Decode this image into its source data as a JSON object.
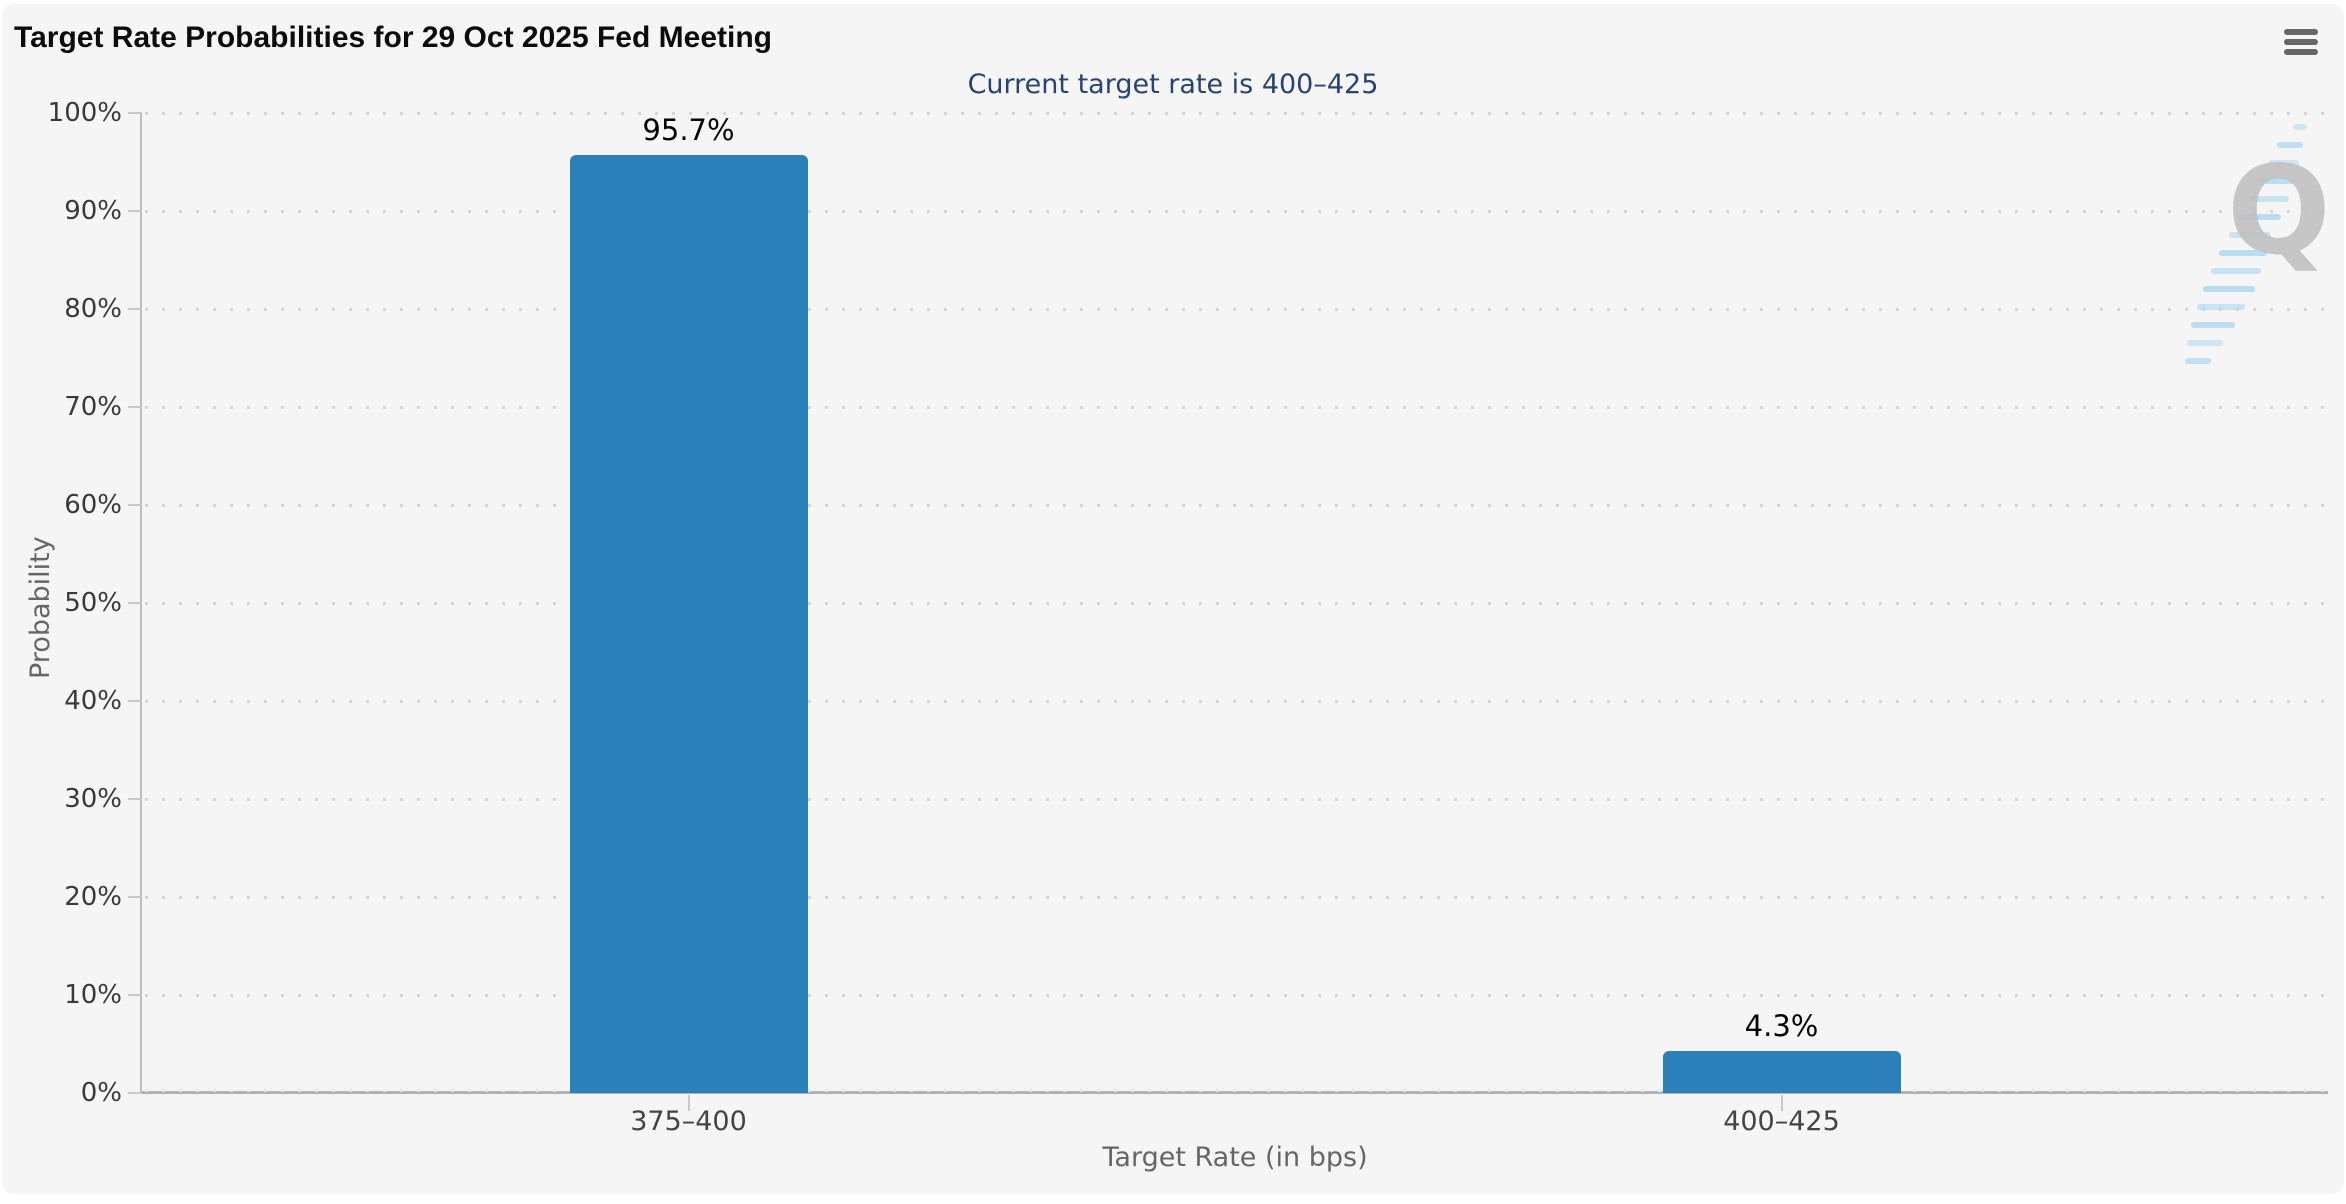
{
  "header": {
    "menu_icon": "hamburger-icon"
  },
  "watermark": {
    "icon": "quikstrike-q-logo",
    "letter": "Q"
  },
  "chart_data": {
    "type": "bar",
    "title": "Target Rate Probabilities for 29 Oct 2025 Fed Meeting",
    "subtitle": "Current target rate is 400–425",
    "categories": [
      "375–400",
      "400–425"
    ],
    "values": [
      95.7,
      4.3
    ],
    "value_labels": [
      "95.7%",
      "4.3%"
    ],
    "xlabel": "Target Rate (in bps)",
    "ylabel": "Probability",
    "ylim": [
      0,
      100
    ],
    "ytick_step": 10,
    "ytick_labels": [
      "0%",
      "10%",
      "20%",
      "30%",
      "40%",
      "50%",
      "60%",
      "70%",
      "80%",
      "90%",
      "100%"
    ],
    "bar_color": "#2c80b9",
    "grid": "horizontal-dotted",
    "legend_position": "none"
  }
}
